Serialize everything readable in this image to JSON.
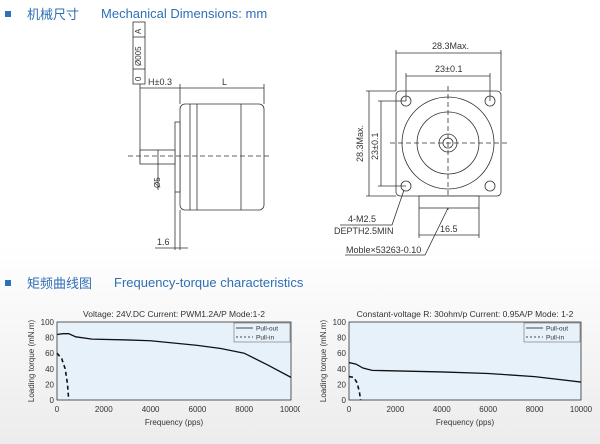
{
  "sections": {
    "mechanical": {
      "cn": "机械尺寸",
      "en": "Mechanical Dimensions: mm"
    },
    "frequency": {
      "cn": "矩频曲线图",
      "en": "Frequency-torque characteristics"
    }
  },
  "drawing": {
    "tolerance_frame": [
      "0",
      "Ø005",
      "A"
    ],
    "h_dim": "H±0.3",
    "l_dim": "L",
    "shaft_dia": "Ø5",
    "flange": "1.6",
    "width_max": "28.3Max.",
    "hole_pitch": "23±0.1",
    "height_max": "28.3Max.",
    "hole_pitch_v": "23±0.1",
    "holes": "4-M2.5",
    "depth": "DEPTH2.5MIN",
    "connector_width": "16.5",
    "connector": "Moble×53263-0.10"
  },
  "chart_data": [
    {
      "type": "line",
      "title": "Voltage: 24V.DC Current: PWM1.2A/P Mode:1-2",
      "xlabel": "Frequency (pps)",
      "ylabel": "Loading torque (mN.m)",
      "xlim": [
        0,
        10000
      ],
      "ylim": [
        0,
        100
      ],
      "xticks": [
        "0",
        "2000",
        "4000",
        "6000",
        "8000",
        "10000"
      ],
      "yticks": [
        "0",
        "20",
        "40",
        "60",
        "80",
        "100"
      ],
      "legend": "top-right",
      "grid": false,
      "series": [
        {
          "name": "Pull-out",
          "style": "solid",
          "x": [
            0,
            250,
            500,
            800,
            1500,
            3000,
            4000,
            6000,
            7000,
            8000,
            9000,
            10000
          ],
          "y": [
            84,
            85,
            85,
            81,
            78,
            77,
            76,
            70,
            66,
            60,
            45,
            29
          ]
        },
        {
          "name": "Pull-in",
          "style": "dashed",
          "x": [
            0,
            200,
            350,
            450,
            500
          ],
          "y": [
            60,
            53,
            40,
            20,
            0
          ]
        }
      ]
    },
    {
      "type": "line",
      "title": "Constant-voltage R: 30ohm/p Current: 0.95A/P Mode: 1-2",
      "xlabel": "Frequency (pps)",
      "ylabel": "Loading torque (mN.m)",
      "xlim": [
        0,
        10000
      ],
      "ylim": [
        0,
        100
      ],
      "xticks": [
        "0",
        "2000",
        "4000",
        "6000",
        "8000",
        "10000"
      ],
      "yticks": [
        "0",
        "20",
        "40",
        "60",
        "80",
        "100"
      ],
      "legend": "top-right",
      "grid": false,
      "series": [
        {
          "name": "Pull-out",
          "style": "solid",
          "x": [
            0,
            300,
            600,
            1000,
            4000,
            6000,
            8000,
            10000
          ],
          "y": [
            48,
            46,
            41,
            38,
            36,
            34,
            30,
            23
          ]
        },
        {
          "name": "Pull-in",
          "style": "dashed",
          "x": [
            0,
            200,
            350,
            450,
            500
          ],
          "y": [
            30,
            29,
            22,
            10,
            0
          ]
        }
      ]
    }
  ],
  "colors": {
    "heading": "#2f6fb5",
    "plot_bg": "#e6f1fa"
  }
}
